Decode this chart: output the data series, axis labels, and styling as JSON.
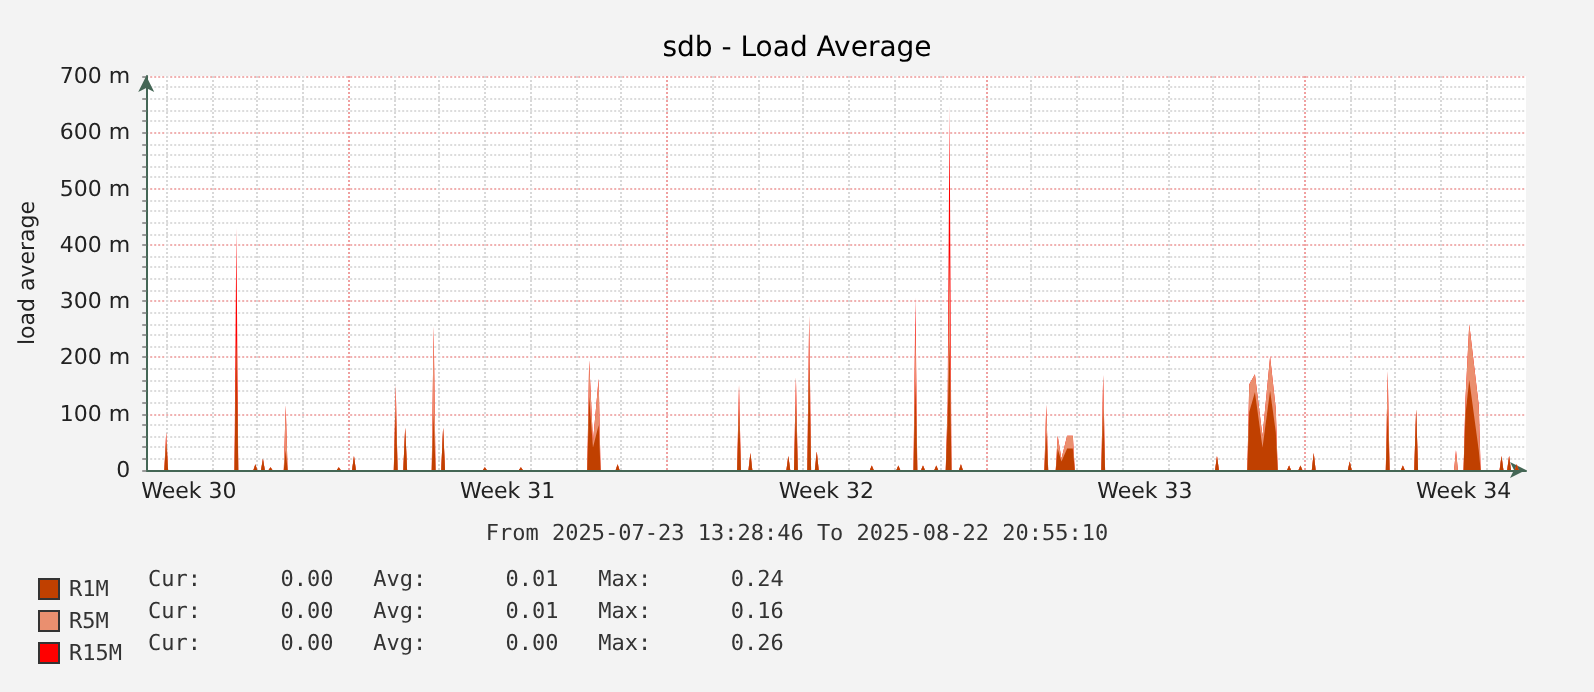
{
  "chart_data": {
    "type": "area",
    "title": "sdb - Load Average",
    "subtitle": "From 2025-07-23 13:28:46 To 2025-08-22 20:55:10",
    "ylabel": "load average",
    "stacked": true,
    "grid": true,
    "legend": "bottom left",
    "x": [
      "2025-07-23T14:00",
      "2025-07-23T23:00",
      "2025-07-24T00:00",
      "2025-07-24T01:00",
      "2025-07-25T12:00",
      "2025-07-25T13:00",
      "2025-07-25T14:00",
      "2025-07-25T22:00",
      "2025-07-25T23:00",
      "2025-07-26T00:00",
      "2025-07-26T02:00",
      "2025-07-26T03:00",
      "2025-07-26T04:00",
      "2025-07-26T06:00",
      "2025-07-26T07:00",
      "2025-07-26T08:00",
      "2025-07-26T14:00",
      "2025-07-26T15:00",
      "2025-07-26T16:00",
      "2025-07-27T18:00",
      "2025-07-27T19:00",
      "2025-07-27T20:00",
      "2025-07-28T02:00",
      "2025-07-28T03:00",
      "2025-07-28T04:00",
      "2025-07-29T00:00",
      "2025-07-29T01:00",
      "2025-07-29T02:00",
      "2025-07-29T05:00",
      "2025-07-29T06:00",
      "2025-07-29T07:00",
      "2025-07-29T20:00",
      "2025-07-29T21:00",
      "2025-07-29T22:00",
      "2025-07-30T01:00",
      "2025-07-30T02:00",
      "2025-07-30T03:00",
      "2025-07-30T23:00",
      "2025-07-31T00:00",
      "2025-07-31T01:00",
      "2025-07-31T18:00",
      "2025-07-31T19:00",
      "2025-07-31T20:00",
      "2025-08-02T06:00",
      "2025-08-02T07:00",
      "2025-08-02T09:00",
      "2025-08-02T12:00",
      "2025-08-02T13:00",
      "2025-08-02T21:00",
      "2025-08-02T22:00",
      "2025-08-02T23:00",
      "2025-08-05T13:00",
      "2025-08-05T14:00",
      "2025-08-05T15:00",
      "2025-08-05T19:00",
      "2025-08-05T20:00",
      "2025-08-05T21:00",
      "2025-08-06T15:00",
      "2025-08-06T16:00",
      "2025-08-06T17:00",
      "2025-08-06T19:00",
      "2025-08-06T20:00",
      "2025-08-06T21:00",
      "2025-08-07T02:00",
      "2025-08-07T03:00",
      "2025-08-07T04:00",
      "2025-08-07T06:00",
      "2025-08-07T07:00",
      "2025-08-07T08:00",
      "2025-08-08T11:00",
      "2025-08-08T12:00",
      "2025-08-08T13:00",
      "2025-08-09T01:00",
      "2025-08-09T02:00",
      "2025-08-09T03:00",
      "2025-08-09T10:00",
      "2025-08-09T11:00",
      "2025-08-09T12:00",
      "2025-08-09T14:00",
      "2025-08-09T15:00",
      "2025-08-09T16:00",
      "2025-08-09T21:00",
      "2025-08-09T22:00",
      "2025-08-09T23:00",
      "2025-08-10T03:00",
      "2025-08-10T04:00",
      "2025-08-10T05:00",
      "2025-08-10T06:00",
      "2025-08-10T10:00",
      "2025-08-10T11:00",
      "2025-08-10T12:00",
      "2025-08-12T07:00",
      "2025-08-12T08:00",
      "2025-08-12T09:00",
      "2025-08-12T13:00",
      "2025-08-12T14:00",
      "2025-08-12T16:00",
      "2025-08-12T19:00",
      "2025-08-12T22:00",
      "2025-08-12T23:00",
      "2025-08-13T13:00",
      "2025-08-13T14:00",
      "2025-08-13T15:00",
      "2025-08-16T01:00",
      "2025-08-16T02:00",
      "2025-08-16T03:00",
      "2025-08-16T18:00",
      "2025-08-16T19:00",
      "2025-08-16T22:00",
      "2025-08-17T02:00",
      "2025-08-17T06:00",
      "2025-08-17T09:00",
      "2025-08-17T10:00",
      "2025-08-17T15:00",
      "2025-08-17T16:00",
      "2025-08-17T17:00",
      "2025-08-17T21:00",
      "2025-08-17T22:00",
      "2025-08-17T23:00",
      "2025-08-18T04:00",
      "2025-08-18T05:00",
      "2025-08-18T06:00",
      "2025-08-18T23:00",
      "2025-08-19T00:00",
      "2025-08-19T01:00",
      "2025-08-19T19:00",
      "2025-08-19T20:00",
      "2025-08-19T21:00",
      "2025-08-20T03:00",
      "2025-08-20T04:00",
      "2025-08-20T05:00",
      "2025-08-20T10:00",
      "2025-08-20T11:00",
      "2025-08-20T12:00",
      "2025-08-21T07:00",
      "2025-08-21T08:00",
      "2025-08-21T09:00",
      "2025-08-21T12:00",
      "2025-08-21T13:00",
      "2025-08-21T15:00",
      "2025-08-21T20:00",
      "2025-08-21T21:00",
      "2025-08-22T07:00",
      "2025-08-22T08:00",
      "2025-08-22T09:00",
      "2025-08-22T11:00",
      "2025-08-22T12:00",
      "2025-08-22T13:00",
      "2025-08-22T15:00",
      "2025-08-22T16:00",
      "2025-08-22T17:00",
      "2025-08-22T20:00"
    ],
    "series": [
      {
        "name": "R1M",
        "color": "#c04000",
        "values": [
          0,
          0,
          50,
          0,
          0,
          230,
          0,
          0,
          10,
          0,
          0,
          20,
          0,
          0,
          5,
          0,
          0,
          35,
          0,
          0,
          5,
          0,
          0,
          25,
          0,
          0,
          110,
          0,
          0,
          75,
          0,
          0,
          100,
          0,
          0,
          75,
          0,
          0,
          5,
          0,
          0,
          5,
          0,
          0,
          130,
          40,
          80,
          0,
          0,
          10,
          0,
          0,
          109,
          0,
          0,
          30,
          0,
          0,
          25,
          0,
          0,
          117,
          0,
          0,
          191,
          0,
          0,
          33,
          0,
          0,
          8,
          0,
          0,
          8,
          0,
          0,
          160,
          0,
          0,
          8,
          0,
          0,
          8,
          0,
          0,
          90,
          229,
          0,
          0,
          10,
          0,
          0,
          67,
          0,
          0,
          38,
          15,
          38,
          38,
          0,
          0,
          109,
          0,
          0,
          25,
          0,
          0,
          103,
          138,
          40,
          141,
          67,
          0,
          0,
          8,
          0,
          0,
          8,
          0,
          0,
          30,
          0,
          0,
          15,
          0,
          0,
          109,
          0,
          0,
          8,
          0,
          0,
          108,
          0,
          0,
          0,
          0,
          0,
          99,
          160,
          35,
          0,
          0,
          25,
          0,
          0,
          25,
          0,
          0,
          10,
          0,
          0
        ]
      },
      {
        "name": "R5M",
        "color": "#ea8f6f",
        "values": [
          0,
          0,
          17,
          0,
          0,
          0,
          0,
          0,
          0,
          0,
          0,
          0,
          0,
          0,
          0,
          0,
          0,
          80,
          0,
          0,
          0,
          0,
          0,
          0,
          0,
          0,
          40,
          0,
          0,
          0,
          0,
          0,
          155,
          0,
          0,
          0,
          0,
          0,
          0,
          0,
          0,
          0,
          0,
          0,
          65,
          10,
          82,
          0,
          0,
          0,
          0,
          0,
          42,
          0,
          0,
          0,
          0,
          0,
          0,
          0,
          0,
          48,
          0,
          0,
          83,
          0,
          0,
          0,
          0,
          0,
          0,
          0,
          0,
          0,
          0,
          0,
          105,
          0,
          0,
          0,
          0,
          0,
          0,
          0,
          0,
          30,
          158,
          0,
          0,
          0,
          0,
          0,
          49,
          0,
          0,
          23,
          5,
          23,
          23,
          0,
          0,
          60,
          0,
          0,
          0,
          0,
          0,
          49,
          32,
          20,
          60,
          42,
          0,
          0,
          0,
          0,
          0,
          0,
          0,
          0,
          0,
          0,
          0,
          0,
          0,
          0,
          67,
          0,
          0,
          0,
          0,
          0,
          0,
          0,
          0,
          35,
          0,
          0,
          27,
          99,
          80,
          0,
          0,
          0,
          0,
          0,
          0,
          0,
          0,
          0,
          0,
          0
        ]
      },
      {
        "name": "R15M",
        "color": "#ff0000",
        "values": [
          0,
          0,
          0,
          0,
          0,
          200,
          0,
          0,
          0,
          0,
          0,
          0,
          0,
          0,
          0,
          0,
          0,
          0,
          0,
          0,
          0,
          0,
          0,
          0,
          0,
          0,
          0,
          0,
          0,
          0,
          0,
          0,
          0,
          0,
          0,
          0,
          0,
          0,
          0,
          0,
          0,
          0,
          0,
          0,
          0,
          0,
          0,
          0,
          0,
          0,
          0,
          0,
          0,
          0,
          0,
          0,
          0,
          0,
          0,
          0,
          0,
          0,
          0,
          0,
          0,
          0,
          0,
          0,
          0,
          0,
          0,
          0,
          0,
          0,
          0,
          0,
          42,
          0,
          0,
          0,
          0,
          0,
          0,
          0,
          0,
          0,
          260,
          0,
          0,
          0,
          0,
          0,
          0,
          0,
          0,
          0,
          0,
          0,
          0,
          0,
          0,
          0,
          0,
          0,
          0,
          0,
          0,
          0,
          0,
          0,
          0,
          0,
          0,
          0,
          0,
          0,
          0,
          0,
          0,
          0,
          0,
          0,
          0,
          0,
          0,
          0,
          0,
          0,
          0,
          0,
          0,
          0,
          0,
          0,
          0,
          0,
          0,
          0,
          0,
          0,
          0,
          0,
          0,
          0,
          0,
          0,
          0,
          0,
          0,
          0,
          0,
          0
        ]
      }
    ],
    "xlim": [
      "2025-07-23T13:28",
      "2025-08-22T20:55"
    ],
    "xticks": [
      {
        "value": "2025-07-24T00:00",
        "label": null
      },
      {
        "value": "2025-07-24T12:00",
        "label": "Week 30"
      },
      {
        "value": "2025-07-25T00:00",
        "label": null
      },
      {
        "value": "2025-07-26T00:00",
        "label": null
      },
      {
        "value": "2025-07-27T00:00",
        "label": null
      },
      {
        "value": "2025-07-28T00:00",
        "label": null
      },
      {
        "value": "2025-07-29T00:00",
        "label": null
      },
      {
        "value": "2025-07-30T00:00",
        "label": null
      },
      {
        "value": "2025-07-31T00:00",
        "label": null
      },
      {
        "value": "2025-07-31T12:00",
        "label": "Week 31"
      },
      {
        "value": "2025-08-01T00:00",
        "label": null
      },
      {
        "value": "2025-08-02T00:00",
        "label": null
      },
      {
        "value": "2025-08-03T00:00",
        "label": null
      },
      {
        "value": "2025-08-04T00:00",
        "label": null
      },
      {
        "value": "2025-08-05T00:00",
        "label": null
      },
      {
        "value": "2025-08-06T00:00",
        "label": null
      },
      {
        "value": "2025-08-07T00:00",
        "label": null
      },
      {
        "value": "2025-08-07T12:00",
        "label": "Week 32"
      },
      {
        "value": "2025-08-08T00:00",
        "label": null
      },
      {
        "value": "2025-08-09T00:00",
        "label": null
      },
      {
        "value": "2025-08-10T00:00",
        "label": null
      },
      {
        "value": "2025-08-11T00:00",
        "label": null
      },
      {
        "value": "2025-08-12T00:00",
        "label": null
      },
      {
        "value": "2025-08-13T00:00",
        "label": null
      },
      {
        "value": "2025-08-14T00:00",
        "label": null
      },
      {
        "value": "2025-08-14T12:00",
        "label": "Week 33"
      },
      {
        "value": "2025-08-15T00:00",
        "label": null
      },
      {
        "value": "2025-08-16T00:00",
        "label": null
      },
      {
        "value": "2025-08-17T00:00",
        "label": null
      },
      {
        "value": "2025-08-18T00:00",
        "label": null
      },
      {
        "value": "2025-08-19T00:00",
        "label": null
      },
      {
        "value": "2025-08-20T00:00",
        "label": null
      },
      {
        "value": "2025-08-21T00:00",
        "label": null
      },
      {
        "value": "2025-08-21T12:00",
        "label": "Week 34"
      },
      {
        "value": "2025-08-22T00:00",
        "label": null
      }
    ],
    "ylim": [
      0,
      700
    ],
    "yticks": [
      0,
      {
        "value": 20,
        "label": null
      },
      {
        "value": 40,
        "label": null
      },
      {
        "value": 60,
        "label": null
      },
      {
        "value": 80,
        "label": null
      },
      {
        "value": 100,
        "label": "100 m"
      },
      {
        "value": 120,
        "label": null
      },
      {
        "value": 140,
        "label": null
      },
      {
        "value": 160,
        "label": null
      },
      {
        "value": 180,
        "label": null
      },
      {
        "value": 200,
        "label": "200 m"
      },
      {
        "value": 220,
        "label": null
      },
      {
        "value": 240,
        "label": null
      },
      {
        "value": 260,
        "label": null
      },
      {
        "value": 280,
        "label": null
      },
      {
        "value": 300,
        "label": "300 m"
      },
      {
        "value": 320,
        "label": null
      },
      {
        "value": 340,
        "label": null
      },
      {
        "value": 360,
        "label": null
      },
      {
        "value": 380,
        "label": null
      },
      {
        "value": 400,
        "label": "400 m"
      },
      {
        "value": 420,
        "label": null
      },
      {
        "value": 440,
        "label": null
      },
      {
        "value": 460,
        "label": null
      },
      {
        "value": 480,
        "label": null
      },
      {
        "value": 500,
        "label": "500 m"
      },
      {
        "value": 520,
        "label": null
      },
      {
        "value": 540,
        "label": null
      },
      {
        "value": 560,
        "label": null
      },
      {
        "value": 580,
        "label": null
      },
      {
        "value": 600,
        "label": "600 m"
      },
      {
        "value": 620,
        "label": null
      },
      {
        "value": 640,
        "label": null
      },
      {
        "value": 660,
        "label": null
      },
      {
        "value": 680,
        "label": null
      },
      {
        "value": 700,
        "label": "700 m"
      }
    ],
    "annotations": [
      "Cur:      0.00   Avg:      0.01   Max:      0.24",
      "Cur:      0.00   Avg:      0.01   Max:      0.16",
      "Cur:      0.00   Avg:      0.00   Max:      0.26"
    ]
  }
}
